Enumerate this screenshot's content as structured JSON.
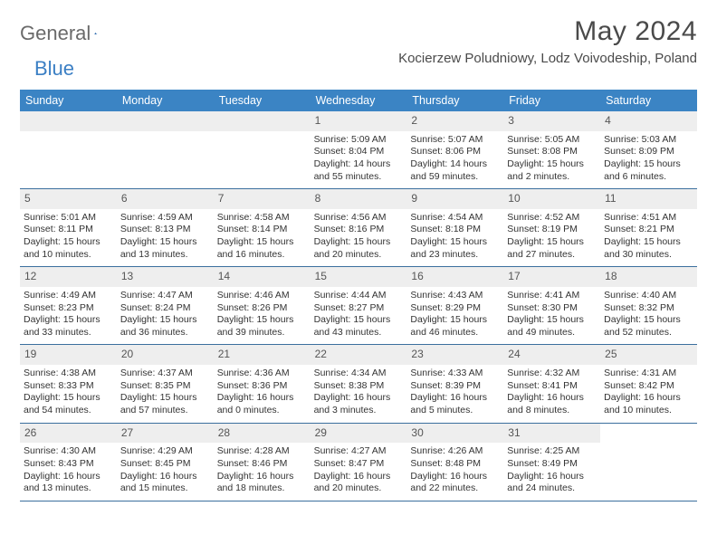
{
  "logo": {
    "word1": "General",
    "word2": "Blue"
  },
  "title": "May 2024",
  "location": "Kocierzew Poludniowy, Lodz Voivodeship, Poland",
  "colors": {
    "header_bg": "#3b84c4",
    "header_text": "#ffffff",
    "daynum_bg": "#eeeeee",
    "rule": "#3b6f9e",
    "body_text": "#333333",
    "logo_gray": "#6a6a6a",
    "logo_blue": "#3b7fc4"
  },
  "fonts": {
    "title_size_pt": 22,
    "location_size_pt": 11,
    "dayhead_size_pt": 9,
    "cell_size_pt": 8
  },
  "day_headers": [
    "Sunday",
    "Monday",
    "Tuesday",
    "Wednesday",
    "Thursday",
    "Friday",
    "Saturday"
  ],
  "weeks": [
    [
      null,
      null,
      null,
      {
        "n": "1",
        "sr": "Sunrise: 5:09 AM",
        "ss": "Sunset: 8:04 PM",
        "dl1": "Daylight: 14 hours",
        "dl2": "and 55 minutes."
      },
      {
        "n": "2",
        "sr": "Sunrise: 5:07 AM",
        "ss": "Sunset: 8:06 PM",
        "dl1": "Daylight: 14 hours",
        "dl2": "and 59 minutes."
      },
      {
        "n": "3",
        "sr": "Sunrise: 5:05 AM",
        "ss": "Sunset: 8:08 PM",
        "dl1": "Daylight: 15 hours",
        "dl2": "and 2 minutes."
      },
      {
        "n": "4",
        "sr": "Sunrise: 5:03 AM",
        "ss": "Sunset: 8:09 PM",
        "dl1": "Daylight: 15 hours",
        "dl2": "and 6 minutes."
      }
    ],
    [
      {
        "n": "5",
        "sr": "Sunrise: 5:01 AM",
        "ss": "Sunset: 8:11 PM",
        "dl1": "Daylight: 15 hours",
        "dl2": "and 10 minutes."
      },
      {
        "n": "6",
        "sr": "Sunrise: 4:59 AM",
        "ss": "Sunset: 8:13 PM",
        "dl1": "Daylight: 15 hours",
        "dl2": "and 13 minutes."
      },
      {
        "n": "7",
        "sr": "Sunrise: 4:58 AM",
        "ss": "Sunset: 8:14 PM",
        "dl1": "Daylight: 15 hours",
        "dl2": "and 16 minutes."
      },
      {
        "n": "8",
        "sr": "Sunrise: 4:56 AM",
        "ss": "Sunset: 8:16 PM",
        "dl1": "Daylight: 15 hours",
        "dl2": "and 20 minutes."
      },
      {
        "n": "9",
        "sr": "Sunrise: 4:54 AM",
        "ss": "Sunset: 8:18 PM",
        "dl1": "Daylight: 15 hours",
        "dl2": "and 23 minutes."
      },
      {
        "n": "10",
        "sr": "Sunrise: 4:52 AM",
        "ss": "Sunset: 8:19 PM",
        "dl1": "Daylight: 15 hours",
        "dl2": "and 27 minutes."
      },
      {
        "n": "11",
        "sr": "Sunrise: 4:51 AM",
        "ss": "Sunset: 8:21 PM",
        "dl1": "Daylight: 15 hours",
        "dl2": "and 30 minutes."
      }
    ],
    [
      {
        "n": "12",
        "sr": "Sunrise: 4:49 AM",
        "ss": "Sunset: 8:23 PM",
        "dl1": "Daylight: 15 hours",
        "dl2": "and 33 minutes."
      },
      {
        "n": "13",
        "sr": "Sunrise: 4:47 AM",
        "ss": "Sunset: 8:24 PM",
        "dl1": "Daylight: 15 hours",
        "dl2": "and 36 minutes."
      },
      {
        "n": "14",
        "sr": "Sunrise: 4:46 AM",
        "ss": "Sunset: 8:26 PM",
        "dl1": "Daylight: 15 hours",
        "dl2": "and 39 minutes."
      },
      {
        "n": "15",
        "sr": "Sunrise: 4:44 AM",
        "ss": "Sunset: 8:27 PM",
        "dl1": "Daylight: 15 hours",
        "dl2": "and 43 minutes."
      },
      {
        "n": "16",
        "sr": "Sunrise: 4:43 AM",
        "ss": "Sunset: 8:29 PM",
        "dl1": "Daylight: 15 hours",
        "dl2": "and 46 minutes."
      },
      {
        "n": "17",
        "sr": "Sunrise: 4:41 AM",
        "ss": "Sunset: 8:30 PM",
        "dl1": "Daylight: 15 hours",
        "dl2": "and 49 minutes."
      },
      {
        "n": "18",
        "sr": "Sunrise: 4:40 AM",
        "ss": "Sunset: 8:32 PM",
        "dl1": "Daylight: 15 hours",
        "dl2": "and 52 minutes."
      }
    ],
    [
      {
        "n": "19",
        "sr": "Sunrise: 4:38 AM",
        "ss": "Sunset: 8:33 PM",
        "dl1": "Daylight: 15 hours",
        "dl2": "and 54 minutes."
      },
      {
        "n": "20",
        "sr": "Sunrise: 4:37 AM",
        "ss": "Sunset: 8:35 PM",
        "dl1": "Daylight: 15 hours",
        "dl2": "and 57 minutes."
      },
      {
        "n": "21",
        "sr": "Sunrise: 4:36 AM",
        "ss": "Sunset: 8:36 PM",
        "dl1": "Daylight: 16 hours",
        "dl2": "and 0 minutes."
      },
      {
        "n": "22",
        "sr": "Sunrise: 4:34 AM",
        "ss": "Sunset: 8:38 PM",
        "dl1": "Daylight: 16 hours",
        "dl2": "and 3 minutes."
      },
      {
        "n": "23",
        "sr": "Sunrise: 4:33 AM",
        "ss": "Sunset: 8:39 PM",
        "dl1": "Daylight: 16 hours",
        "dl2": "and 5 minutes."
      },
      {
        "n": "24",
        "sr": "Sunrise: 4:32 AM",
        "ss": "Sunset: 8:41 PM",
        "dl1": "Daylight: 16 hours",
        "dl2": "and 8 minutes."
      },
      {
        "n": "25",
        "sr": "Sunrise: 4:31 AM",
        "ss": "Sunset: 8:42 PM",
        "dl1": "Daylight: 16 hours",
        "dl2": "and 10 minutes."
      }
    ],
    [
      {
        "n": "26",
        "sr": "Sunrise: 4:30 AM",
        "ss": "Sunset: 8:43 PM",
        "dl1": "Daylight: 16 hours",
        "dl2": "and 13 minutes."
      },
      {
        "n": "27",
        "sr": "Sunrise: 4:29 AM",
        "ss": "Sunset: 8:45 PM",
        "dl1": "Daylight: 16 hours",
        "dl2": "and 15 minutes."
      },
      {
        "n": "28",
        "sr": "Sunrise: 4:28 AM",
        "ss": "Sunset: 8:46 PM",
        "dl1": "Daylight: 16 hours",
        "dl2": "and 18 minutes."
      },
      {
        "n": "29",
        "sr": "Sunrise: 4:27 AM",
        "ss": "Sunset: 8:47 PM",
        "dl1": "Daylight: 16 hours",
        "dl2": "and 20 minutes."
      },
      {
        "n": "30",
        "sr": "Sunrise: 4:26 AM",
        "ss": "Sunset: 8:48 PM",
        "dl1": "Daylight: 16 hours",
        "dl2": "and 22 minutes."
      },
      {
        "n": "31",
        "sr": "Sunrise: 4:25 AM",
        "ss": "Sunset: 8:49 PM",
        "dl1": "Daylight: 16 hours",
        "dl2": "and 24 minutes."
      },
      null
    ]
  ]
}
